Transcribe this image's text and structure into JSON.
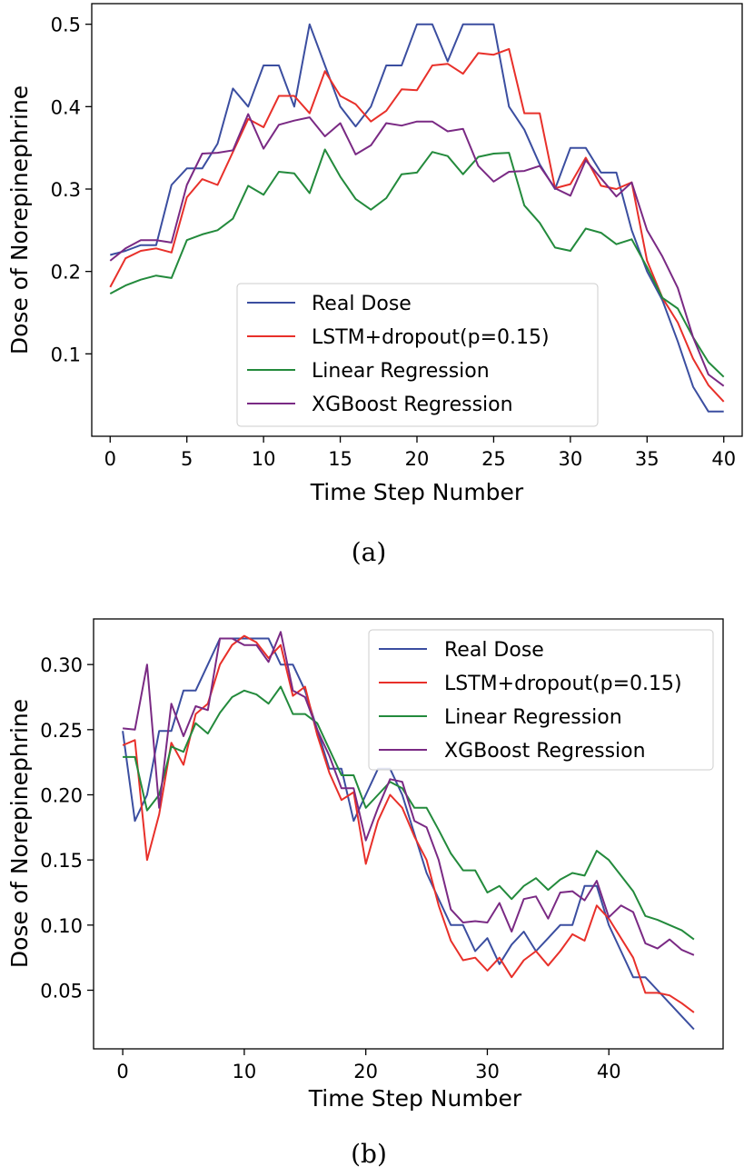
{
  "chart_data": [
    {
      "type": "line",
      "caption": "(a)",
      "xlabel": "Time Step Number",
      "ylabel": "Dose of Norepinephrine",
      "xlim": [
        -1.2,
        41.2
      ],
      "ylim": [
        0.0,
        0.525
      ],
      "xticks": [
        0,
        5,
        10,
        15,
        20,
        25,
        30,
        35,
        40
      ],
      "xtick_labels": [
        "0",
        "5",
        "10",
        "15",
        "20",
        "25",
        "30",
        "35",
        "40"
      ],
      "yticks": [
        0.1,
        0.2,
        0.3,
        0.4,
        0.5
      ],
      "ytick_labels": [
        "0.1",
        "0.2",
        "0.3",
        "0.4",
        "0.5"
      ],
      "legend_location": "lower-center",
      "x": [
        0,
        1,
        2,
        3,
        4,
        5,
        6,
        7,
        8,
        9,
        10,
        11,
        12,
        13,
        14,
        15,
        16,
        17,
        18,
        19,
        20,
        21,
        22,
        23,
        24,
        25,
        26,
        27,
        28,
        29,
        30,
        31,
        32,
        33,
        34,
        35,
        36,
        37,
        38,
        39,
        40
      ],
      "series": [
        {
          "name": "Real Dose",
          "color": "#3b4ea0",
          "values": [
            0.22,
            0.225,
            0.232,
            0.232,
            0.305,
            0.325,
            0.325,
            0.355,
            0.422,
            0.4,
            0.45,
            0.45,
            0.4,
            0.5,
            0.45,
            0.4,
            0.376,
            0.4,
            0.45,
            0.45,
            0.5,
            0.5,
            0.455,
            0.5,
            0.5,
            0.5,
            0.4,
            0.372,
            0.33,
            0.3,
            0.35,
            0.35,
            0.32,
            0.32,
            0.25,
            0.2,
            0.165,
            0.115,
            0.06,
            0.03,
            0.03
          ]
        },
        {
          "name": "LSTM+dropout(p=0.15)",
          "color": "#e8302a",
          "values": [
            0.181,
            0.216,
            0.225,
            0.228,
            0.223,
            0.29,
            0.312,
            0.305,
            0.345,
            0.385,
            0.375,
            0.413,
            0.413,
            0.392,
            0.443,
            0.413,
            0.403,
            0.382,
            0.395,
            0.421,
            0.42,
            0.45,
            0.452,
            0.44,
            0.465,
            0.463,
            0.47,
            0.392,
            0.392,
            0.301,
            0.306,
            0.338,
            0.304,
            0.3,
            0.308,
            0.213,
            0.168,
            0.138,
            0.094,
            0.062,
            0.042
          ]
        },
        {
          "name": "Linear Regression",
          "color": "#238a3c",
          "values": [
            0.173,
            0.183,
            0.19,
            0.195,
            0.192,
            0.238,
            0.245,
            0.25,
            0.264,
            0.304,
            0.293,
            0.321,
            0.319,
            0.295,
            0.348,
            0.315,
            0.288,
            0.275,
            0.289,
            0.318,
            0.32,
            0.345,
            0.34,
            0.318,
            0.339,
            0.343,
            0.344,
            0.28,
            0.259,
            0.229,
            0.225,
            0.252,
            0.247,
            0.233,
            0.239,
            0.205,
            0.168,
            0.155,
            0.12,
            0.09,
            0.072
          ]
        },
        {
          "name": "XGBoost Regression",
          "color": "#7a2a84",
          "values": [
            0.213,
            0.228,
            0.238,
            0.238,
            0.235,
            0.305,
            0.343,
            0.344,
            0.347,
            0.391,
            0.349,
            0.378,
            0.383,
            0.387,
            0.364,
            0.38,
            0.342,
            0.353,
            0.38,
            0.377,
            0.382,
            0.382,
            0.37,
            0.373,
            0.328,
            0.309,
            0.321,
            0.322,
            0.328,
            0.301,
            0.292,
            0.335,
            0.313,
            0.291,
            0.308,
            0.25,
            0.218,
            0.18,
            0.12,
            0.075,
            0.061
          ]
        }
      ]
    },
    {
      "type": "line",
      "caption": "(b)",
      "xlabel": "Time Step Number",
      "ylabel": "Dose of Norepinephrine",
      "xlim": [
        -2.4,
        49.4
      ],
      "ylim": [
        0.005,
        0.335
      ],
      "xticks": [
        0,
        10,
        20,
        30,
        40
      ],
      "xtick_labels": [
        "0",
        "10",
        "20",
        "30",
        "40"
      ],
      "yticks": [
        0.05,
        0.1,
        0.15,
        0.2,
        0.25,
        0.3
      ],
      "ytick_labels": [
        "0.05",
        "0.10",
        "0.15",
        "0.20",
        "0.25",
        "0.30"
      ],
      "legend_location": "top-right",
      "x": [
        0,
        1,
        2,
        3,
        4,
        5,
        6,
        7,
        8,
        9,
        10,
        11,
        12,
        13,
        14,
        15,
        16,
        17,
        18,
        19,
        20,
        21,
        22,
        23,
        24,
        25,
        26,
        27,
        28,
        29,
        30,
        31,
        32,
        33,
        34,
        35,
        36,
        37,
        38,
        39,
        40,
        41,
        42,
        43,
        44,
        45,
        46,
        47
      ],
      "series": [
        {
          "name": "Real Dose",
          "color": "#3b4ea0",
          "values": [
            0.249,
            0.18,
            0.2,
            0.249,
            0.249,
            0.28,
            0.28,
            0.3,
            0.32,
            0.32,
            0.32,
            0.32,
            0.32,
            0.3,
            0.3,
            0.28,
            0.25,
            0.22,
            0.22,
            0.18,
            0.2,
            0.22,
            0.22,
            0.2,
            0.17,
            0.14,
            0.12,
            0.1,
            0.1,
            0.08,
            0.09,
            0.07,
            0.085,
            0.095,
            0.08,
            0.09,
            0.1,
            0.1,
            0.13,
            0.13,
            0.1,
            0.08,
            0.06,
            0.06,
            0.05,
            0.04,
            0.03,
            0.02
          ]
        },
        {
          "name": "LSTM+dropout(p=0.15)",
          "color": "#e8302a",
          "values": [
            0.238,
            0.242,
            0.15,
            0.185,
            0.24,
            0.223,
            0.262,
            0.27,
            0.3,
            0.315,
            0.322,
            0.317,
            0.305,
            0.315,
            0.276,
            0.283,
            0.246,
            0.217,
            0.196,
            0.202,
            0.147,
            0.18,
            0.2,
            0.19,
            0.168,
            0.15,
            0.115,
            0.088,
            0.073,
            0.075,
            0.065,
            0.075,
            0.06,
            0.073,
            0.08,
            0.069,
            0.08,
            0.093,
            0.088,
            0.115,
            0.105,
            0.09,
            0.075,
            0.048,
            0.048,
            0.046,
            0.04,
            0.033
          ]
        },
        {
          "name": "Linear Regression",
          "color": "#238a3c",
          "values": [
            0.229,
            0.229,
            0.188,
            0.2,
            0.237,
            0.233,
            0.255,
            0.247,
            0.263,
            0.275,
            0.28,
            0.277,
            0.27,
            0.283,
            0.262,
            0.262,
            0.255,
            0.235,
            0.215,
            0.215,
            0.19,
            0.2,
            0.21,
            0.205,
            0.19,
            0.19,
            0.173,
            0.155,
            0.142,
            0.142,
            0.125,
            0.13,
            0.12,
            0.13,
            0.136,
            0.127,
            0.135,
            0.14,
            0.138,
            0.157,
            0.15,
            0.138,
            0.126,
            0.107,
            0.104,
            0.1,
            0.096,
            0.089
          ]
        },
        {
          "name": "XGBoost Regression",
          "color": "#7a2a84",
          "values": [
            0.251,
            0.25,
            0.3,
            0.19,
            0.27,
            0.245,
            0.268,
            0.265,
            0.32,
            0.32,
            0.315,
            0.315,
            0.302,
            0.325,
            0.28,
            0.275,
            0.25,
            0.23,
            0.205,
            0.205,
            0.165,
            0.19,
            0.212,
            0.21,
            0.18,
            0.175,
            0.15,
            0.112,
            0.102,
            0.103,
            0.102,
            0.117,
            0.095,
            0.12,
            0.122,
            0.105,
            0.125,
            0.126,
            0.119,
            0.134,
            0.106,
            0.115,
            0.11,
            0.086,
            0.082,
            0.089,
            0.081,
            0.077
          ]
        }
      ]
    }
  ]
}
